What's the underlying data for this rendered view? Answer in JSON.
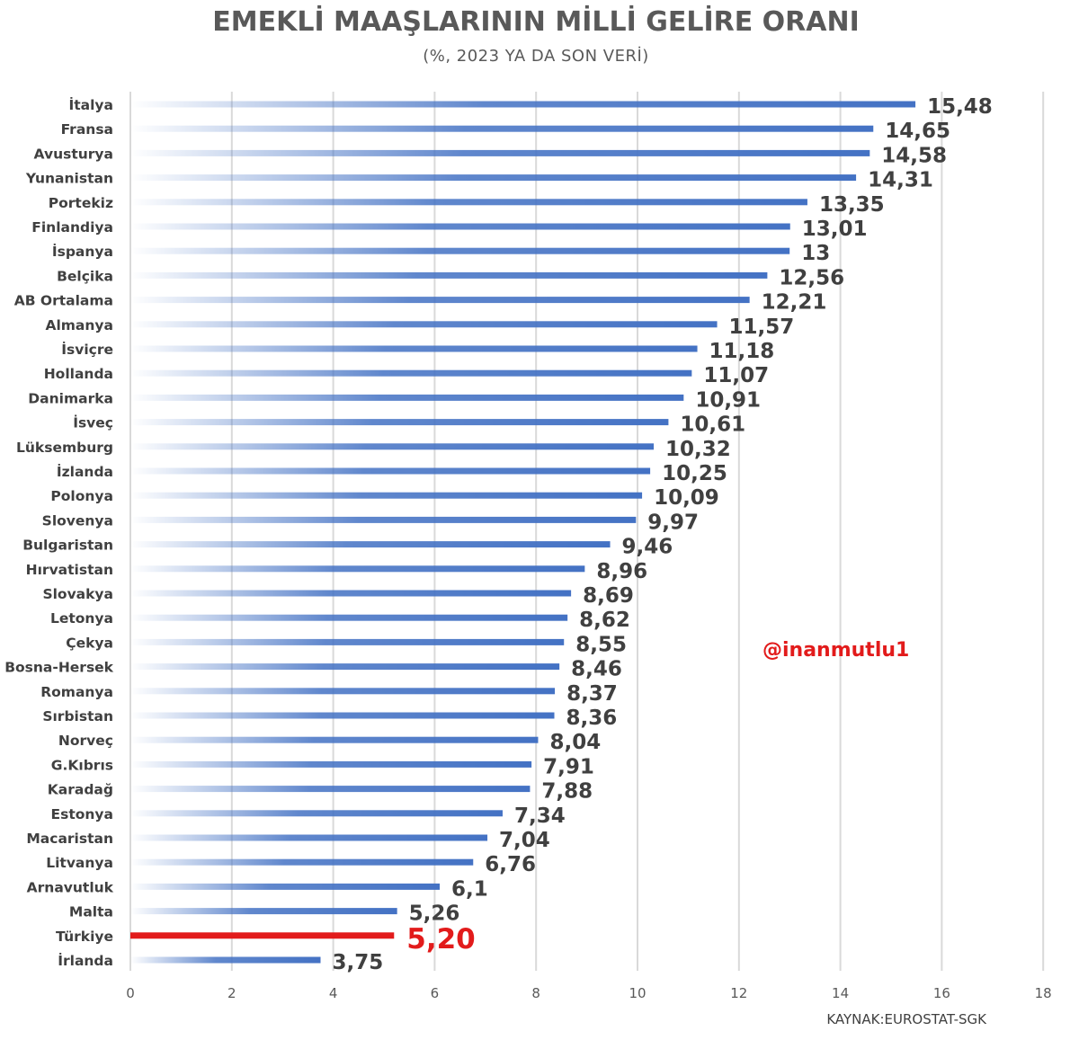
{
  "chart_data": {
    "type": "bar",
    "orientation": "horizontal",
    "title": "EMEKLİ MAAŞLARININ MİLLİ GELİRE ORANI",
    "subtitle": "(%, 2023 YA DA SON VERİ)",
    "categories": [
      "İtalya",
      "Fransa",
      "Avusturya",
      "Yunanistan",
      "Portekiz",
      "Finlandiya",
      "İspanya",
      "Belçika",
      "AB Ortalama",
      "Almanya",
      "İsviçre",
      "Hollanda",
      "Danimarka",
      "İsveç",
      "Lüksemburg",
      "İzlanda",
      "Polonya",
      "Slovenya",
      "Bulgaristan",
      "Hırvatistan",
      "Slovakya",
      "Letonya",
      "Çekya",
      "Bosna-Hersek",
      "Romanya",
      "Sırbistan",
      "Norveç",
      "G.Kıbrıs",
      "Karadağ",
      "Estonya",
      "Macaristan",
      "Litvanya",
      "Arnavutluk",
      "Malta",
      "Türkiye",
      "İrlanda"
    ],
    "values": [
      15.48,
      14.65,
      14.58,
      14.31,
      13.35,
      13.01,
      13,
      12.56,
      12.21,
      11.57,
      11.18,
      11.07,
      10.91,
      10.61,
      10.32,
      10.25,
      10.09,
      9.97,
      9.46,
      8.96,
      8.69,
      8.62,
      8.55,
      8.46,
      8.37,
      8.36,
      8.04,
      7.91,
      7.88,
      7.34,
      7.04,
      6.76,
      6.1,
      5.26,
      5.2,
      3.75
    ],
    "value_labels": [
      "15,48",
      "14,65",
      "14,58",
      "14,31",
      "13,35",
      "13,01",
      "13",
      "12,56",
      "12,21",
      "11,57",
      "11,18",
      "11,07",
      "10,91",
      "10,61",
      "10,32",
      "10,25",
      "10,09",
      "9,97",
      "9,46",
      "8,96",
      "8,69",
      "8,62",
      "8,55",
      "8,46",
      "8,37",
      "8,36",
      "8,04",
      "7,91",
      "7,88",
      "7,34",
      "7,04",
      "6,76",
      "6,1",
      "5,26",
      "5,20",
      "3,75"
    ],
    "highlight_category": "Türkiye",
    "xlim": [
      0,
      18
    ],
    "x_ticks": [
      "0",
      "2",
      "4",
      "6",
      "8",
      "10",
      "12",
      "14",
      "16",
      "18"
    ],
    "grid": "vertical",
    "legend": "none",
    "colors": {
      "bar": "#4472c4",
      "highlight": "#e21b1b",
      "grid": "#d9d9d9",
      "text": "#404040"
    },
    "source": "KAYNAK:EUROSTAT-SGK",
    "watermark": "@inanmutlu1"
  }
}
